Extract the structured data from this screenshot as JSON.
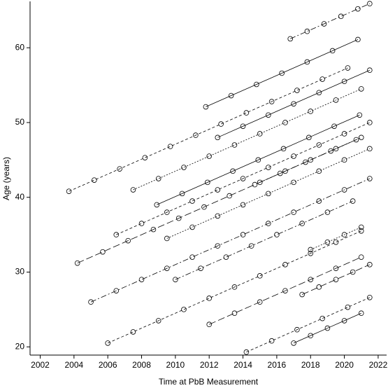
{
  "chart_data": {
    "type": "line",
    "marker": "circle",
    "color": "#000000",
    "x_label": "Time at PbB Measurement",
    "y_label": "Age (years)",
    "xlim": [
      2001.4,
      2022.5
    ],
    "ylim": [
      18.9,
      66.2
    ],
    "xticks": [
      2002,
      2004,
      2006,
      2008,
      2010,
      2012,
      2014,
      2016,
      2018,
      2020,
      2022
    ],
    "yticks": [
      20,
      30,
      40,
      50,
      60
    ],
    "series": [
      {
        "x": [
          2003.7,
          2005.2,
          2006.7,
          2008.2,
          2009.7,
          2011.2,
          2012.7,
          2014.2,
          2015.7,
          2017.2,
          2018.7,
          2020.2
        ],
        "values": [
          40.8,
          42.3,
          43.8,
          45.3,
          46.8,
          48.3,
          49.8,
          51.3,
          52.8,
          54.3,
          55.8,
          57.3
        ]
      },
      {
        "x": [
          2016.8,
          2017.8,
          2018.8,
          2019.8,
          2020.8,
          2021.5
        ],
        "values": [
          61.2,
          62.2,
          63.2,
          64.2,
          65.2,
          65.9
        ]
      },
      {
        "x": [
          2011.8,
          2013.3,
          2014.8,
          2016.3,
          2017.8,
          2019.3,
          2020.8
        ],
        "values": [
          52.1,
          53.6,
          55.1,
          56.6,
          58.1,
          59.6,
          61.1
        ]
      },
      {
        "x": [
          2007.5,
          2009,
          2010.5,
          2012,
          2013.5,
          2015,
          2016.5,
          2018,
          2019.5,
          2021
        ],
        "values": [
          41,
          42.5,
          44,
          45.5,
          47,
          48.5,
          50,
          51.5,
          53,
          54.5
        ]
      },
      {
        "x": [
          2004.2,
          2005.7,
          2007.2,
          2008.7,
          2010.2,
          2011.7,
          2013.2,
          2014.7,
          2016.2,
          2017.7,
          2019.2,
          2020.7
        ],
        "values": [
          31.2,
          32.7,
          34.2,
          35.7,
          37.2,
          38.7,
          40.2,
          41.7,
          43.2,
          44.7,
          46.2,
          47.7
        ]
      },
      {
        "x": [
          2006,
          2007.5,
          2009,
          2010.5,
          2012,
          2013.5,
          2015,
          2016.5,
          2018,
          2019.5,
          2021
        ],
        "values": [
          20.5,
          22,
          23.5,
          25,
          26.5,
          28,
          29.5,
          31,
          32.5,
          34,
          35.5
        ]
      },
      {
        "x": [
          2005,
          2006.5,
          2008,
          2009.5,
          2011,
          2012.5,
          2014,
          2015.5,
          2017,
          2018.5,
          2020,
          2021.5
        ],
        "values": [
          26,
          27.5,
          29,
          30.5,
          32,
          33.5,
          35,
          36.5,
          38,
          39.5,
          41,
          42.5
        ]
      },
      {
        "x": [
          2008.9,
          2010.4,
          2011.9,
          2013.4,
          2014.9,
          2016.4,
          2017.9,
          2019.4,
          2020.9
        ],
        "values": [
          39,
          40.5,
          42,
          43.5,
          45,
          46.5,
          48,
          49.5,
          51
        ]
      },
      {
        "x": [
          2009.5,
          2011,
          2012.5,
          2014,
          2015.5,
          2017,
          2018.5,
          2020,
          2021.5
        ],
        "values": [
          34.5,
          36,
          37.5,
          39,
          40.5,
          42,
          43.5,
          45,
          46.5
        ]
      },
      {
        "x": [
          2012,
          2013.5,
          2015,
          2016.5,
          2018,
          2019.5,
          2021
        ],
        "values": [
          23,
          24.5,
          26,
          27.5,
          29,
          30.5,
          32
        ]
      },
      {
        "x": [
          2014.2,
          2015.7,
          2017.2,
          2018.7,
          2020.2,
          2021.5
        ],
        "values": [
          19.3,
          20.8,
          22.3,
          23.8,
          25.3,
          26.6
        ]
      },
      {
        "x": [
          2010,
          2011.5,
          2013,
          2014.5,
          2016,
          2017.5,
          2019,
          2020.5
        ],
        "values": [
          29,
          30.5,
          32,
          33.5,
          35,
          36.5,
          38,
          39.5
        ]
      },
      {
        "x": [
          2017,
          2018,
          2019,
          2020,
          2021
        ],
        "values": [
          20.5,
          21.5,
          22.5,
          23.5,
          24.5
        ]
      },
      {
        "x": [
          2018,
          2019,
          2020,
          2021
        ],
        "values": [
          33,
          34,
          35,
          36
        ]
      },
      {
        "x": [
          2017.5,
          2018.5,
          2019.5,
          2020.5,
          2021.5
        ],
        "values": [
          27,
          28,
          29,
          30,
          31
        ]
      },
      {
        "x": [
          2006.5,
          2008,
          2009.5,
          2011,
          2012.5,
          2014,
          2015.5,
          2017,
          2018.5,
          2020,
          2021.5
        ],
        "values": [
          35,
          36.5,
          38,
          39.5,
          41,
          42.5,
          44,
          45.5,
          47,
          48.5,
          50
        ]
      },
      {
        "x": [
          2015,
          2016.5,
          2018,
          2019.5,
          2021
        ],
        "values": [
          42,
          43.5,
          45,
          46.5,
          48
        ]
      },
      {
        "x": [
          2012.5,
          2014,
          2015.5,
          2017,
          2018.5,
          2020,
          2021.5
        ],
        "values": [
          48,
          49.5,
          51,
          52.5,
          54,
          55.5,
          57
        ]
      }
    ]
  }
}
